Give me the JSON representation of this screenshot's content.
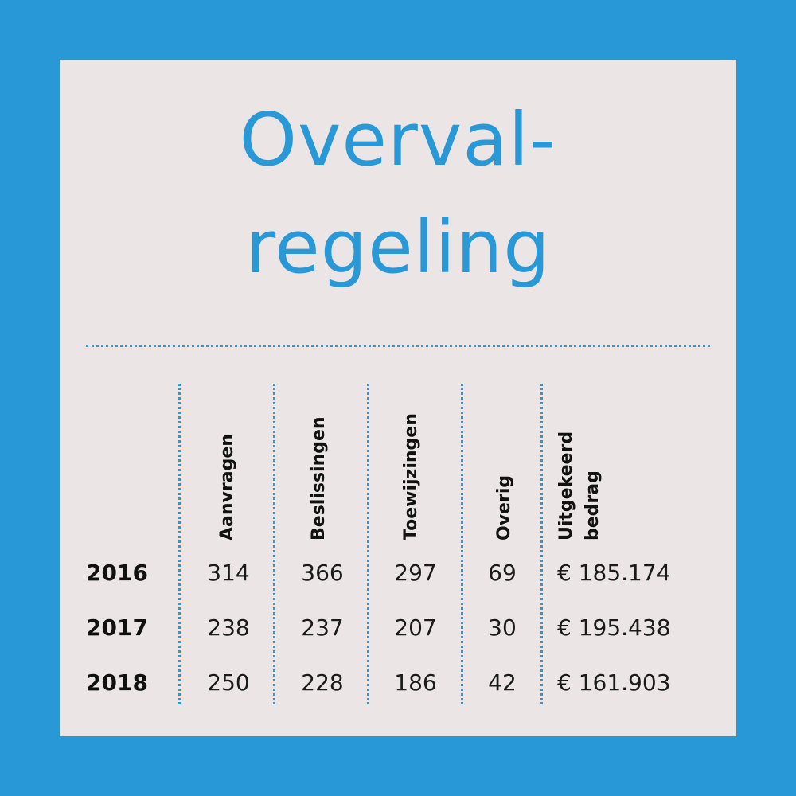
{
  "title": {
    "line1": "Overval-",
    "line2": "regeling"
  },
  "chart_data": {
    "type": "table",
    "title": "Overval- regeling",
    "columns": [
      "Aanvragen",
      "Beslissingen",
      "Toewijzingen",
      "Overig",
      "Uitgekeerd bedrag"
    ],
    "column_labels": {
      "aanvragen": "Aanvragen",
      "beslissingen": "Beslissingen",
      "toewijzingen": "Toewijzingen",
      "overig": "Overig",
      "uitgekeerd_line1": "Uitgekeerd",
      "uitgekeerd_line2": "bedrag"
    },
    "rows": [
      {
        "year": "2016",
        "aanvragen": "314",
        "beslissingen": "366",
        "toewijzingen": "297",
        "overig": "69",
        "uitgekeerd": "€ 185.174"
      },
      {
        "year": "2017",
        "aanvragen": "238",
        "beslissingen": "237",
        "toewijzingen": "207",
        "overig": "30",
        "uitgekeerd": "€ 195.438"
      },
      {
        "year": "2018",
        "aanvragen": "250",
        "beslissingen": "228",
        "toewijzingen": "186",
        "overig": "42",
        "uitgekeerd": "€ 161.903"
      }
    ]
  },
  "colors": {
    "accent": "#2899d6",
    "card": "#ebe5e5",
    "text": "#111111"
  }
}
